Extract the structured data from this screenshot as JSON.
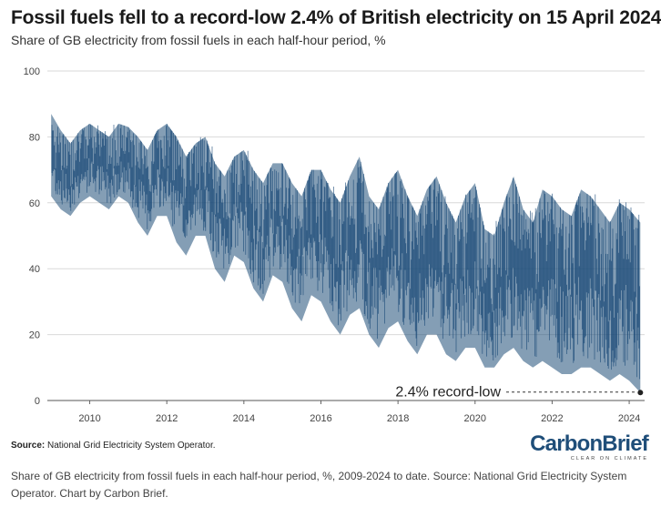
{
  "header": {
    "title": "Fossil fuels fell to a record-low 2.4% of British electricity on 15 April 2024",
    "subtitle": "Share of GB electricity from fossil fuels in each half-hour period, %"
  },
  "chart_data": {
    "type": "area",
    "title": "Fossil fuels fell to a record-low 2.4% of British electricity on 15 April 2024",
    "subtitle": "Share of GB electricity from fossil fuels in each half-hour period, %",
    "xlabel": "",
    "ylabel": "",
    "xlim": [
      2008.9,
      2024.4
    ],
    "ylim": [
      0,
      100
    ],
    "x_ticks": [
      "2010",
      "2012",
      "2014",
      "2016",
      "2018",
      "2020",
      "2022",
      "2024"
    ],
    "y_ticks": [
      "0",
      "20",
      "40",
      "60",
      "80",
      "100"
    ],
    "grid": true,
    "series": [
      {
        "color": "#1f4e79",
        "x": [
          2009.0,
          2009.25,
          2009.5,
          2009.75,
          2010.0,
          2010.25,
          2010.5,
          2010.75,
          2011.0,
          2011.25,
          2011.5,
          2011.75,
          2012.0,
          2012.25,
          2012.5,
          2012.75,
          2013.0,
          2013.25,
          2013.5,
          2013.75,
          2014.0,
          2014.25,
          2014.5,
          2014.75,
          2015.0,
          2015.25,
          2015.5,
          2015.75,
          2016.0,
          2016.25,
          2016.5,
          2016.75,
          2017.0,
          2017.25,
          2017.5,
          2017.75,
          2018.0,
          2018.25,
          2018.5,
          2018.75,
          2019.0,
          2019.25,
          2019.5,
          2019.75,
          2020.0,
          2020.25,
          2020.5,
          2020.75,
          2021.0,
          2021.25,
          2021.5,
          2021.75,
          2022.0,
          2022.25,
          2022.5,
          2022.75,
          2023.0,
          2023.25,
          2023.5,
          2023.75,
          2024.0,
          2024.29
        ],
        "max": [
          87,
          82,
          78,
          82,
          84,
          82,
          80,
          84,
          83,
          80,
          76,
          82,
          84,
          80,
          74,
          78,
          80,
          72,
          68,
          74,
          76,
          70,
          66,
          72,
          72,
          66,
          62,
          70,
          70,
          64,
          60,
          68,
          74,
          62,
          58,
          66,
          70,
          62,
          56,
          64,
          68,
          60,
          54,
          62,
          66,
          52,
          50,
          60,
          68,
          58,
          54,
          64,
          62,
          58,
          56,
          64,
          62,
          58,
          54,
          60,
          58,
          54
        ],
        "min": [
          62,
          58,
          56,
          60,
          62,
          60,
          58,
          62,
          60,
          54,
          50,
          56,
          56,
          48,
          44,
          50,
          50,
          40,
          36,
          44,
          42,
          34,
          30,
          38,
          36,
          28,
          24,
          32,
          30,
          24,
          20,
          26,
          28,
          20,
          16,
          22,
          24,
          18,
          14,
          20,
          20,
          14,
          12,
          16,
          16,
          10,
          10,
          14,
          16,
          12,
          10,
          12,
          10,
          8,
          8,
          10,
          10,
          8,
          6,
          8,
          6,
          2.4
        ]
      }
    ],
    "annotations": [
      {
        "text": "2.4% record-low",
        "x": 2024.29,
        "y": 2.4
      }
    ]
  },
  "source": {
    "label": "Source:",
    "text": " National Grid Electricity System Operator."
  },
  "logo": {
    "name": "CarbonBrief",
    "tagline": "CLEAR ON CLIMATE"
  },
  "caption": "Share of GB electricity from fossil fuels in each half-hour period, %, 2009-2024 to date. Source: National Grid Electricity System Operator. Chart by Carbon Brief."
}
